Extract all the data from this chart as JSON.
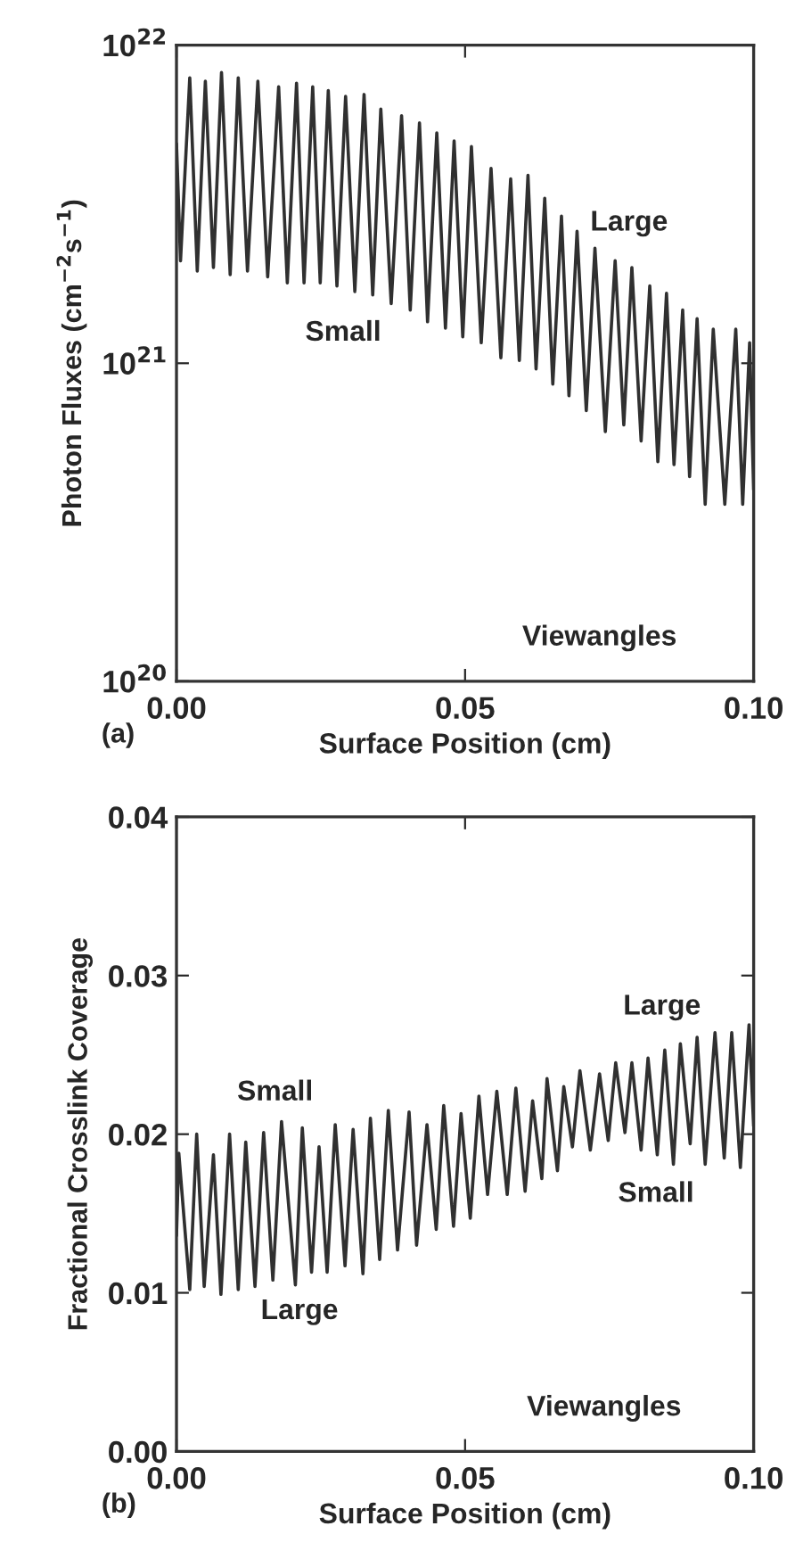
{
  "chart_data": [
    {
      "type": "line",
      "xlabel": "Surface Position (cm)",
      "ylabel": "Photon Fluxes (cm$^{−2}$s$^{−1}$)",
      "log": "y",
      "xlim": [
        0,
        0.1
      ],
      "xticks": [
        {
          "value": 0,
          "label": "0.00"
        },
        {
          "value": 0.05,
          "label": "0.05"
        },
        {
          "value": 0.1,
          "label": "0.10"
        }
      ],
      "ylim": [
        1e+20,
        1e+22
      ],
      "yticks": [
        {
          "value": 1e+20,
          "label": "10$^{20}$"
        },
        {
          "value": 1e+21,
          "label": "10$^{21}$"
        },
        {
          "value": 1e+22,
          "label": "10$^{22}$"
        }
      ],
      "annotations": [
        "(a)",
        "Large",
        "Small",
        "Viewangles"
      ],
      "series": [
        {
          "color": "#303030",
          "x": [
            0,
            0.0007,
            0.0023,
            0.0036,
            0.005,
            0.0064,
            0.0078,
            0.0093,
            0.0107,
            0.0123,
            0.0141,
            0.0158,
            0.0177,
            0.0192,
            0.0208,
            0.0221,
            0.0236,
            0.0249,
            0.0263,
            0.0278,
            0.0293,
            0.0309,
            0.0325,
            0.034,
            0.0354,
            0.0372,
            0.039,
            0.0405,
            0.0421,
            0.0435,
            0.0451,
            0.0466,
            0.0481,
            0.0496,
            0.0511,
            0.0528,
            0.0545,
            0.0562,
            0.0579,
            0.0594,
            0.0609,
            0.0623,
            0.0638,
            0.0652,
            0.0667,
            0.068,
            0.0694,
            0.071,
            0.0725,
            0.0743,
            0.076,
            0.0775,
            0.0789,
            0.0805,
            0.082,
            0.0834,
            0.0849,
            0.0862,
            0.0877,
            0.0889,
            0.0902,
            0.0916,
            0.093,
            0.095,
            0.0969,
            0.0981,
            0.0993,
            0.1
          ],
          "values": [
            4.9e+21,
            2.1e+21,
            7.9e+21,
            1.95e+21,
            7.7e+21,
            2e+21,
            8.2e+21,
            1.9e+21,
            7.9e+21,
            1.95e+21,
            7.7e+21,
            1.87e+21,
            7.4e+21,
            1.79e+21,
            7.6e+21,
            1.79e+21,
            7.4e+21,
            1.79e+21,
            7.2e+21,
            1.75e+21,
            6.9e+21,
            1.68e+21,
            7e+21,
            1.64e+21,
            6.3e+21,
            1.54e+21,
            6e+21,
            1.47e+21,
            5.7e+21,
            1.35e+21,
            5.3e+21,
            1.29e+21,
            5e+21,
            1.21e+21,
            4.8e+21,
            1.16e+21,
            4.1e+21,
            1.04e+21,
            3.8e+21,
            1.02e+21,
            3.9e+21,
            9.6e+20,
            3.3e+21,
            8.6e+20,
            2.9e+21,
            7.9e+20,
            2.6e+21,
            7.1e+20,
            2.3e+21,
            6.1e+20,
            2.1e+21,
            6.4e+20,
            2e+21,
            5.7e+20,
            1.75e+21,
            4.9e+20,
            1.66e+21,
            4.8e+20,
            1.47e+21,
            4.4e+20,
            1.38e+21,
            3.6e+20,
            1.28e+21,
            3.6e+20,
            1.28e+21,
            3.6e+20,
            1.16e+21,
            4e+20
          ]
        }
      ]
    },
    {
      "type": "line",
      "xlabel": "Surface Position (cm)",
      "ylabel": "Fractional Crosslink Coverage",
      "xlim": [
        0,
        0.1
      ],
      "xticks": [
        {
          "value": 0,
          "label": "0.00"
        },
        {
          "value": 0.05,
          "label": "0.05"
        },
        {
          "value": 0.1,
          "label": "0.10"
        }
      ],
      "ylim": [
        0,
        0.04
      ],
      "yticks": [
        {
          "value": 0,
          "label": "0.00"
        },
        {
          "value": 0.01,
          "label": "0.01"
        },
        {
          "value": 0.02,
          "label": "0.02"
        },
        {
          "value": 0.03,
          "label": "0.03"
        },
        {
          "value": 0.04,
          "label": "0.04"
        }
      ],
      "annotations": [
        "(b)",
        "Small",
        "Large",
        "Small",
        "Large",
        "Viewangles"
      ],
      "series": [
        {
          "color": "#303030",
          "x": [
            0,
            0.0004,
            0.0023,
            0.0035,
            0.0048,
            0.0064,
            0.0077,
            0.0092,
            0.0107,
            0.012,
            0.0136,
            0.0151,
            0.0167,
            0.0182,
            0.0206,
            0.0218,
            0.0234,
            0.0247,
            0.0261,
            0.0275,
            0.0292,
            0.0306,
            0.0323,
            0.0336,
            0.0352,
            0.0367,
            0.0383,
            0.0403,
            0.0416,
            0.0434,
            0.045,
            0.0463,
            0.048,
            0.0493,
            0.0509,
            0.0524,
            0.0539,
            0.0555,
            0.0573,
            0.0588,
            0.0604,
            0.0617,
            0.0633,
            0.0642,
            0.066,
            0.0671,
            0.0686,
            0.0699,
            0.0717,
            0.0733,
            0.0748,
            0.0761,
            0.0777,
            0.0789,
            0.0805,
            0.0817,
            0.0833,
            0.0846,
            0.0861,
            0.0873,
            0.089,
            0.0902,
            0.0916,
            0.0933,
            0.0949,
            0.0962,
            0.0977,
            0.0992,
            0.1
          ],
          "values": [
            0.0136,
            0.0188,
            0.0102,
            0.02,
            0.0104,
            0.0187,
            0.0099,
            0.02,
            0.0102,
            0.0195,
            0.0104,
            0.0201,
            0.0108,
            0.0208,
            0.0105,
            0.0204,
            0.0113,
            0.0192,
            0.0113,
            0.0206,
            0.0117,
            0.0203,
            0.0112,
            0.021,
            0.0121,
            0.0215,
            0.0127,
            0.0214,
            0.013,
            0.0206,
            0.014,
            0.0218,
            0.0142,
            0.0213,
            0.0147,
            0.0224,
            0.0162,
            0.0227,
            0.0162,
            0.0229,
            0.0164,
            0.0221,
            0.0172,
            0.0235,
            0.0177,
            0.023,
            0.0192,
            0.024,
            0.019,
            0.0238,
            0.0196,
            0.0245,
            0.0201,
            0.0245,
            0.019,
            0.0248,
            0.0187,
            0.0253,
            0.0181,
            0.0257,
            0.0194,
            0.0261,
            0.0181,
            0.0264,
            0.0185,
            0.0264,
            0.0179,
            0.0269,
            0.0205
          ]
        }
      ]
    }
  ]
}
